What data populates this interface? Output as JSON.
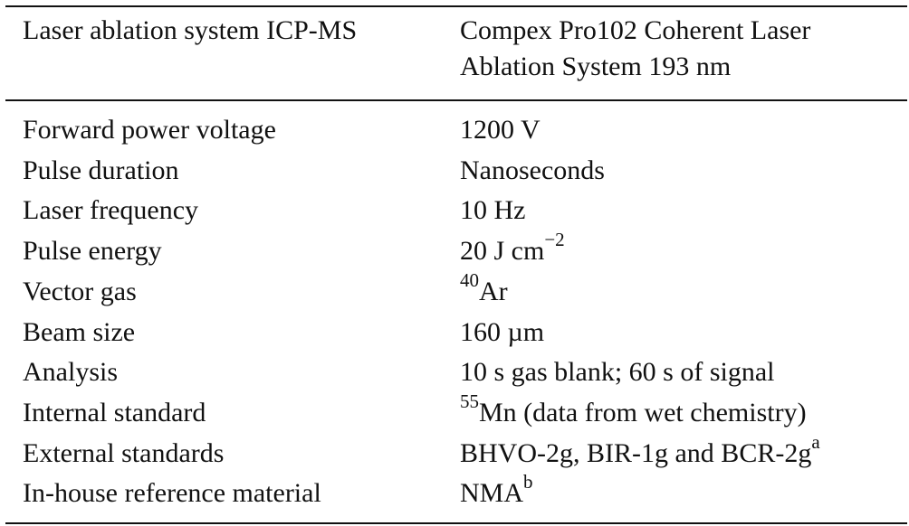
{
  "table": {
    "header": [
      "Laser ablation system ICP-MS",
      [
        "Compex Pro102 Coherent Laser",
        "Ablation System 193 nm"
      ]
    ],
    "rows": [
      [
        "Forward power voltage",
        [
          {
            "t": "1200 V"
          }
        ]
      ],
      [
        "Pulse duration",
        [
          {
            "t": "Nanoseconds"
          }
        ]
      ],
      [
        "Laser frequency",
        [
          {
            "t": "10 Hz"
          }
        ]
      ],
      [
        "Pulse energy",
        [
          {
            "t": "20 J cm"
          },
          {
            "sup": "−2"
          }
        ]
      ],
      [
        "Vector gas",
        [
          {
            "sup": "40"
          },
          {
            "t": "Ar"
          }
        ]
      ],
      [
        "Beam size",
        [
          {
            "t": "160 µm"
          }
        ]
      ],
      [
        "Analysis",
        [
          {
            "t": "10 s gas blank; 60 s of signal"
          }
        ]
      ],
      [
        "Internal standard",
        [
          {
            "sup": "55"
          },
          {
            "t": "Mn (data from wet chemistry)"
          }
        ]
      ],
      [
        "External standards",
        [
          {
            "t": "BHVO-2g, BIR-1g and BCR-2g"
          },
          {
            "sup": "a"
          }
        ]
      ],
      [
        "In-house reference material",
        [
          {
            "t": "NMA"
          },
          {
            "sup": "b"
          }
        ]
      ]
    ]
  }
}
